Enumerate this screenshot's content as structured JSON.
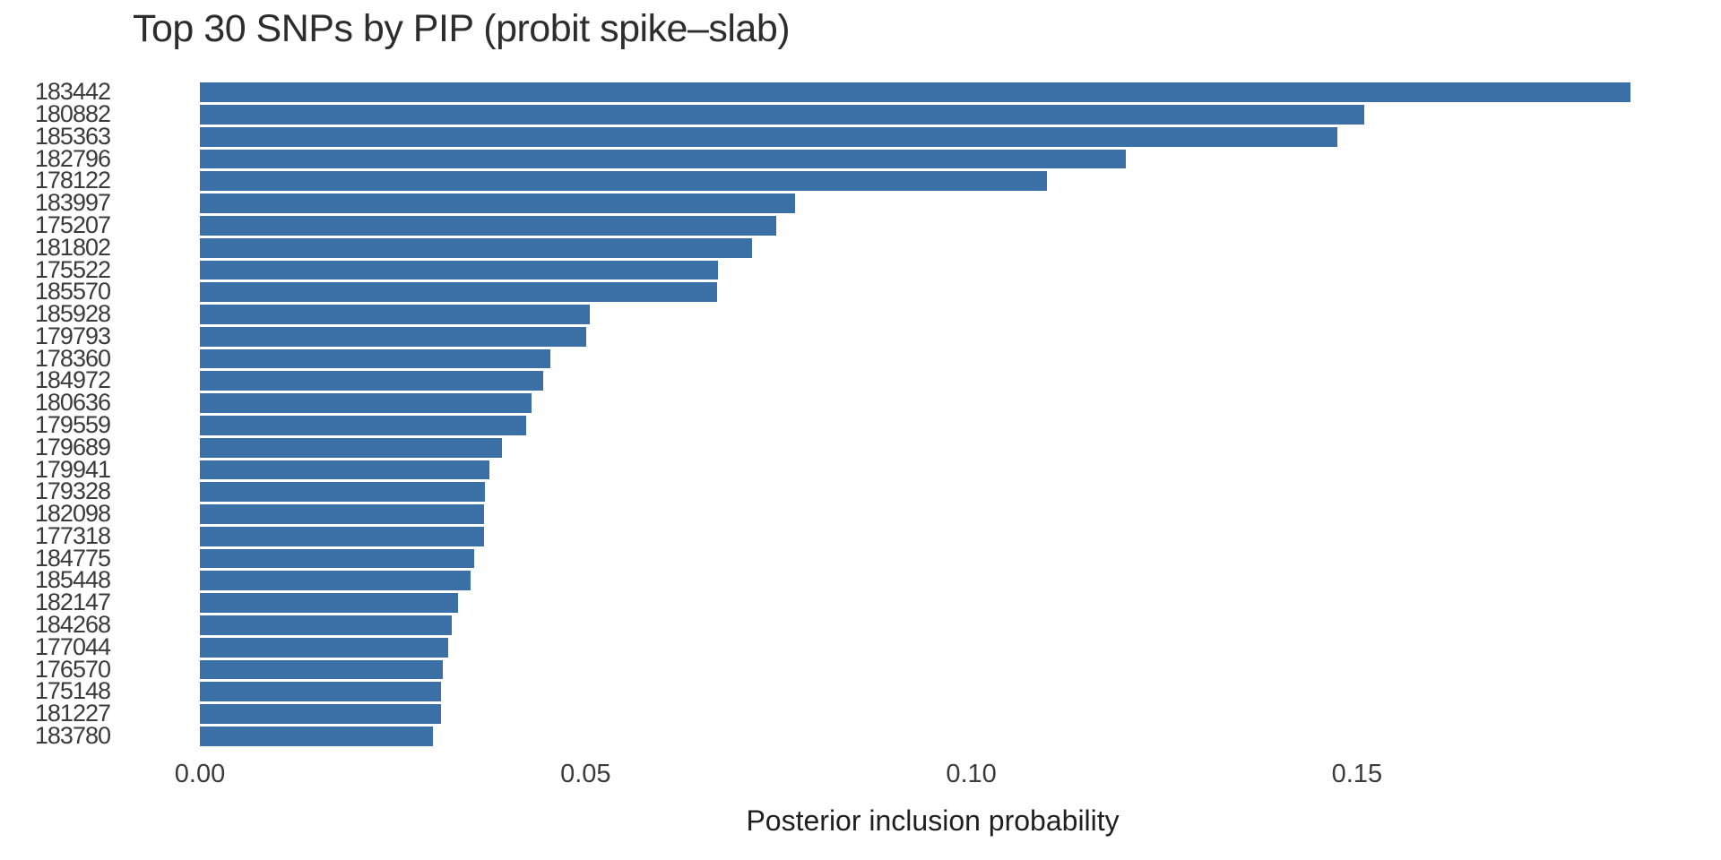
{
  "figure": {
    "title": "Top 30 SNPs by PIP (probit spike–slab)",
    "xlabel": "Posterior inclusion probability"
  },
  "chart_data": {
    "type": "bar",
    "orientation": "horizontal",
    "title": "Top 30 SNPs by PIP (probit spike–slab)",
    "xlabel": "Posterior inclusion probability",
    "ylabel": "",
    "categories": [
      "183442",
      "180882",
      "185363",
      "182796",
      "178122",
      "183997",
      "175207",
      "181802",
      "175522",
      "185570",
      "185928",
      "179793",
      "178360",
      "184972",
      "180636",
      "179559",
      "179689",
      "179941",
      "179328",
      "182098",
      "177318",
      "184775",
      "185448",
      "182147",
      "184268",
      "177044",
      "176570",
      "175148",
      "181227",
      "183780"
    ],
    "values": [
      0.1854,
      0.1509,
      0.1474,
      0.12,
      0.1098,
      0.0772,
      0.0747,
      0.0716,
      0.0672,
      0.067,
      0.0505,
      0.0501,
      0.0454,
      0.0445,
      0.043,
      0.0423,
      0.0392,
      0.0375,
      0.0369,
      0.0368,
      0.0368,
      0.0356,
      0.0351,
      0.0335,
      0.0326,
      0.0322,
      0.0315,
      0.0313,
      0.0312,
      0.0302
    ],
    "x_ticks": {
      "values": [
        0.0,
        0.05,
        0.1,
        0.15
      ],
      "labels": [
        "0.00",
        "0.05",
        "0.10",
        "0.15"
      ]
    },
    "xlim": [
      0,
      0.19
    ],
    "grid": false,
    "legend": null,
    "bar_color": "#3a70a6",
    "text_color": "#3b3b3b"
  }
}
